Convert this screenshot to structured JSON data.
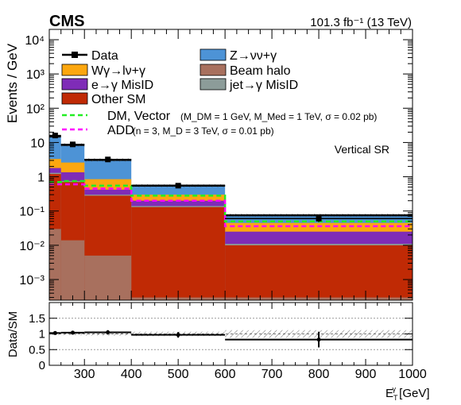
{
  "chart_data": [
    {
      "type": "bar",
      "title": "CMS",
      "subtitle": "101.3 fb⁻¹ (13 TeV)",
      "annotation": "Vertical SR",
      "xlabel": "E_T^γ [GeV]",
      "ylabel": "Events / GeV",
      "yscale": "log",
      "xlim": [
        225,
        1000
      ],
      "ylim": [
        0.00025,
        20000
      ],
      "bin_edges": [
        225,
        250,
        300,
        400,
        600,
        1000
      ],
      "stack_order": [
        "Beam halo",
        "Other SM",
        "jet→γ MisID",
        "e→γ MisID",
        "Wγ→lν+γ",
        "Z→νν+γ"
      ],
      "stack_cumulative": {
        "Beam halo": [
          0.03,
          0.014,
          0.005,
          0.0003,
          0.0003
        ],
        "Other SM": [
          1.2,
          0.7,
          0.28,
          0.13,
          0.01
        ],
        "jet→γ MisID": [
          1.3,
          0.75,
          0.3,
          0.14,
          0.011
        ],
        "e→γ MisID": [
          1.8,
          1.35,
          0.42,
          0.2,
          0.025
        ],
        "Wγ→lν+γ": [
          3.3,
          2.6,
          0.85,
          0.3,
          0.045
        ],
        "Z→νν+γ": [
          15.0,
          8.5,
          3.1,
          0.55,
          0.075
        ]
      },
      "legend": [
        {
          "name": "Data",
          "style": "marker",
          "color": "#000000"
        },
        {
          "name": "Z→νν+γ",
          "style": "fill",
          "color": "#4d93d6"
        },
        {
          "name": "Wγ→lν+γ",
          "style": "fill",
          "color": "#fca70f"
        },
        {
          "name": "Beam halo",
          "style": "fill",
          "color": "#a8705e"
        },
        {
          "name": "e→γ MisID",
          "style": "fill",
          "color": "#7f2cb7"
        },
        {
          "name": "jet→γ MisID",
          "style": "fill",
          "color": "#8c9c99"
        },
        {
          "name": "Other SM",
          "style": "fill",
          "color": "#c02a05"
        }
      ],
      "signals": [
        {
          "name": "DM, Vector",
          "params": "(M_DM = 1 GeV, M_Med = 1 TeV, σ = 0.02 pb)",
          "color": "#22ee22",
          "values": [
            0.7,
            0.75,
            0.55,
            0.28,
            0.05
          ]
        },
        {
          "name": "ADD",
          "params": "(n = 3, M_D = 3 TeV, σ = 0.01 pb)",
          "color": "#ff00ff",
          "values": [
            0.6,
            0.6,
            0.45,
            0.2,
            0.036
          ]
        }
      ],
      "data_points": [
        {
          "x": 237.5,
          "y": 16.0,
          "err": 1.0
        },
        {
          "x": 275,
          "y": 8.8,
          "err": 0.5
        },
        {
          "x": 350,
          "y": 3.2,
          "err": 0.2
        },
        {
          "x": 500,
          "y": 0.55,
          "err": 0.05
        },
        {
          "x": 800,
          "y": 0.06,
          "err": 0.012
        }
      ],
      "yticks": [
        "10⁻³",
        "10⁻²",
        "10⁻¹",
        "1",
        "10",
        "10²",
        "10³",
        "10⁴"
      ],
      "yticks_exp": [
        -3,
        -2,
        -1,
        0,
        1,
        2,
        3,
        4
      ],
      "colors": {
        "uncertainty": "#333333",
        "frame": "#000000"
      }
    },
    {
      "type": "scatter",
      "ylabel": "Data/SM",
      "xlabel": "E_T^γ [GeV]",
      "xlim": [
        225,
        1000
      ],
      "ylim": [
        0,
        2
      ],
      "xticks": [
        300,
        400,
        500,
        600,
        700,
        800,
        900,
        1000
      ],
      "yticks": [
        0,
        0.5,
        1,
        1.5
      ],
      "reference_line": 1,
      "bin_edges": [
        225,
        250,
        300,
        400,
        600,
        1000
      ],
      "ratio": [
        1.03,
        1.04,
        1.05,
        0.97,
        0.82
      ],
      "ratio_err": [
        0.06,
        0.06,
        0.07,
        0.09,
        0.25
      ],
      "band_halfwidth": [
        0.04,
        0.04,
        0.05,
        0.07,
        0.12
      ]
    }
  ]
}
